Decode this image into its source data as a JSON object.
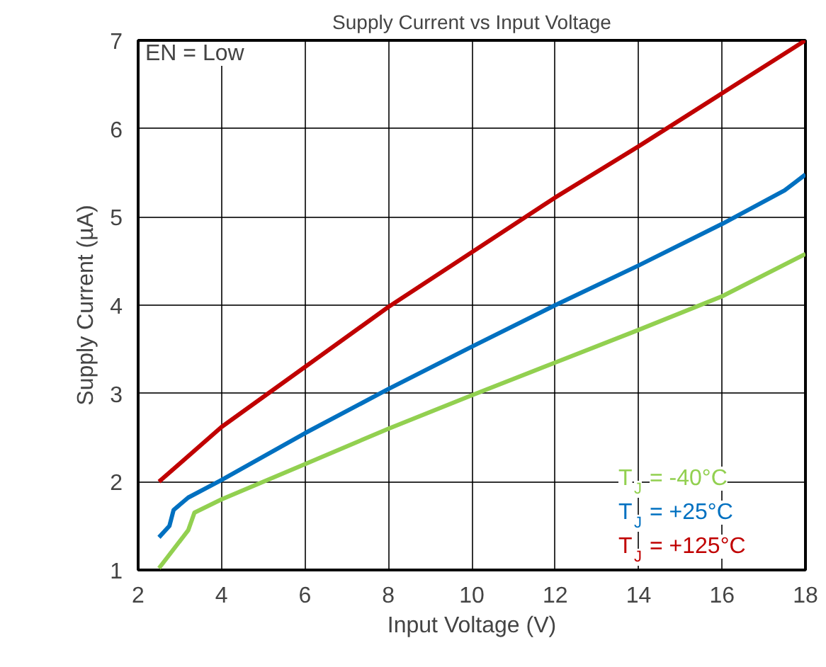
{
  "chart_data": {
    "type": "line",
    "title": "Supply Current vs Input Voltage",
    "xlabel": "Input Voltage (V)",
    "ylabel": "Supply Current (µA)",
    "xlim": [
      2,
      18
    ],
    "xticks": [
      2,
      4,
      6,
      8,
      10,
      12,
      14,
      16,
      18
    ],
    "ylim": [
      1,
      7
    ],
    "yticks": [
      1,
      2,
      3,
      4,
      5,
      6,
      7
    ],
    "grid": true,
    "legend": "bottom right",
    "annotations": [
      "EN = Low"
    ],
    "series": [
      {
        "name": "T$_{J}$ = -40°C",
        "color": "#92d050",
        "x": [
          2.5,
          3.2,
          3.35,
          4,
          6,
          8,
          10,
          12,
          14,
          16,
          18
        ],
        "values": [
          1.02,
          1.45,
          1.65,
          1.8,
          2.2,
          2.6,
          2.98,
          3.35,
          3.72,
          4.1,
          4.58
        ]
      },
      {
        "name": "T$_{J}$ = +25°C",
        "color": "#0070c0",
        "x": [
          2.5,
          2.75,
          2.85,
          3.2,
          4,
          6,
          8,
          10,
          12,
          14,
          16,
          17.5,
          18
        ],
        "values": [
          1.37,
          1.5,
          1.68,
          1.82,
          2.02,
          2.55,
          3.05,
          3.53,
          4.0,
          4.45,
          4.92,
          5.3,
          5.48
        ]
      },
      {
        "name": "T$_{J}$ = +125°C",
        "color": "#c00000",
        "x": [
          2.5,
          4,
          6,
          8,
          10,
          12,
          14,
          16,
          18
        ],
        "values": [
          2.0,
          2.62,
          3.3,
          3.98,
          4.6,
          5.22,
          5.8,
          6.4,
          7.0
        ]
      }
    ]
  }
}
